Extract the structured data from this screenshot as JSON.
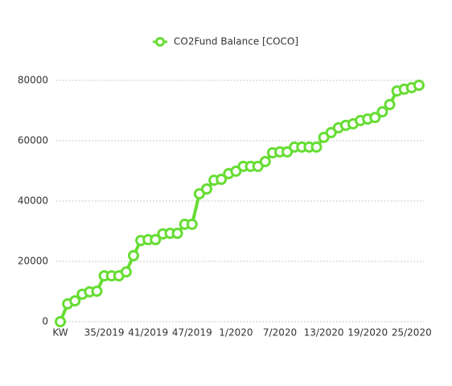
{
  "chart_data": {
    "type": "line",
    "categories": [
      "KW",
      null,
      null,
      null,
      null,
      null,
      "35/2019",
      null,
      null,
      null,
      null,
      null,
      "41/2019",
      null,
      null,
      null,
      null,
      null,
      "47/2019",
      null,
      null,
      null,
      null,
      null,
      "1/2020",
      null,
      null,
      null,
      null,
      null,
      "7/2020",
      null,
      null,
      null,
      null,
      null,
      "13/2020",
      null,
      null,
      null,
      null,
      null,
      "19/2020",
      null,
      null,
      null,
      null,
      null,
      "25/2020",
      null
    ],
    "series": [
      {
        "name": "CO2Fund Balance [COCO]",
        "color": "#66dd33",
        "values": [
          0,
          5900,
          6900,
          9100,
          9900,
          10100,
          15200,
          15200,
          15200,
          16500,
          21900,
          26900,
          27200,
          27200,
          29100,
          29300,
          29300,
          32300,
          32300,
          42400,
          44000,
          46900,
          47200,
          49100,
          49900,
          51500,
          51500,
          51500,
          53100,
          56000,
          56300,
          56300,
          57900,
          57900,
          57900,
          57900,
          61100,
          62700,
          64300,
          65100,
          65600,
          66700,
          67200,
          67700,
          69600,
          72000,
          76500,
          77100,
          77600,
          78400
        ]
      }
    ],
    "ylim": [
      0,
      80000
    ],
    "yticks": [
      0,
      20000,
      40000,
      60000,
      80000
    ],
    "grid": true,
    "legend": "top"
  }
}
